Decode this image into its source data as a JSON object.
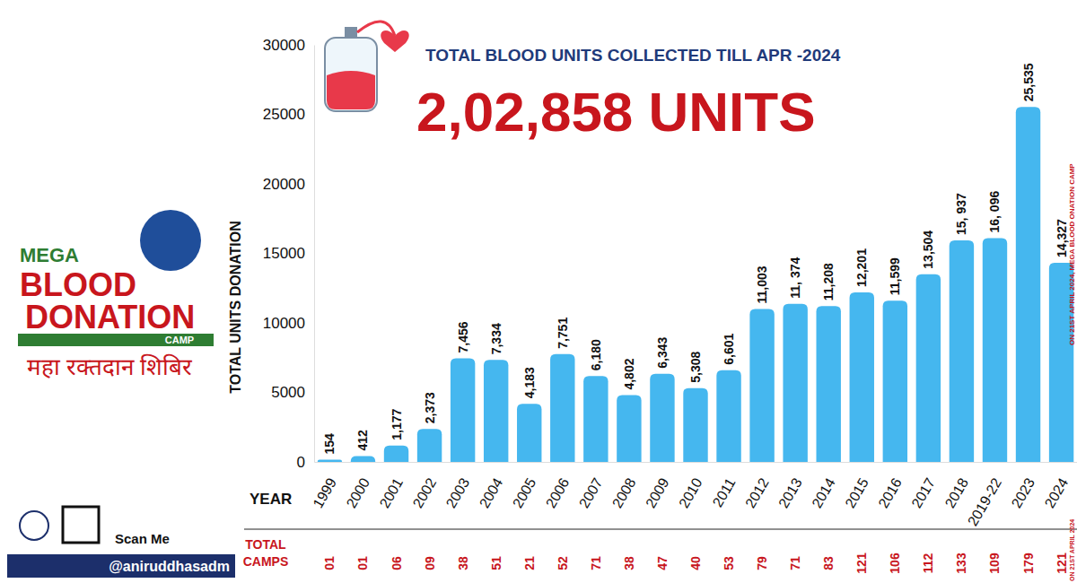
{
  "chart_data": {
    "type": "bar",
    "title": "TOTAL BLOOD UNITS COLLECTED TILL APR -2024",
    "subtitle": "2,02,858 UNITS",
    "x_label": "YEAR",
    "y_label": "TOTAL UNITS DONATION",
    "categories": [
      "1999",
      "2000",
      "2001",
      "2002",
      "2003",
      "2004",
      "2005",
      "2006",
      "2007",
      "2008",
      "2009",
      "2010",
      "2011",
      "2012",
      "2013",
      "2014",
      "2015",
      "2016",
      "2017",
      "2018",
      "2019-22",
      "2023",
      "2024"
    ],
    "values": [
      154,
      412,
      1177,
      2373,
      7456,
      7334,
      4183,
      7751,
      6180,
      4802,
      6343,
      5308,
      6601,
      11003,
      11374,
      11208,
      12201,
      11599,
      13504,
      15937,
      16096,
      25535,
      14327
    ],
    "value_labels": [
      "154",
      "412",
      "1,177",
      "2,373",
      "7,456",
      "7,334",
      "4,183",
      "7,751",
      "6,180",
      "4,802",
      "6,343",
      "5,308",
      "6,601",
      "11,003",
      "11, 374",
      "11,208",
      "12,201",
      "11,599",
      "13,504",
      "15, 937",
      "16, 096",
      "25,535",
      "14,327"
    ],
    "color": "#45b7ef",
    "data_labels": true,
    "grid": false,
    "ylim": [
      0,
      30000
    ],
    "yticks": [
      0,
      5000,
      10000,
      15000,
      20000,
      25000,
      30000
    ],
    "camps": {
      "label": "TOTAL CAMPS",
      "values": [
        "01",
        "01",
        "06",
        "09",
        "38",
        "51",
        "21",
        "52",
        "71",
        "38",
        "47",
        "40",
        "53",
        "79",
        "71",
        "83",
        "121",
        "106",
        "112",
        "133",
        "109",
        "179",
        "121"
      ],
      "note": "ON 21ST APRIL 2024"
    },
    "annotations": [
      "ON 21ST APRIL 2024, MEGA BLOOD ONATION CAMP"
    ]
  },
  "logo": {
    "mega": "MEGA",
    "blood": "BLOOD",
    "donation": "DONATION",
    "camp": "CAMP",
    "hindi": "महा रक्तदान शिबिर"
  },
  "footer": {
    "scan": "Scan Me",
    "handle": "@aniruddhasadm"
  }
}
